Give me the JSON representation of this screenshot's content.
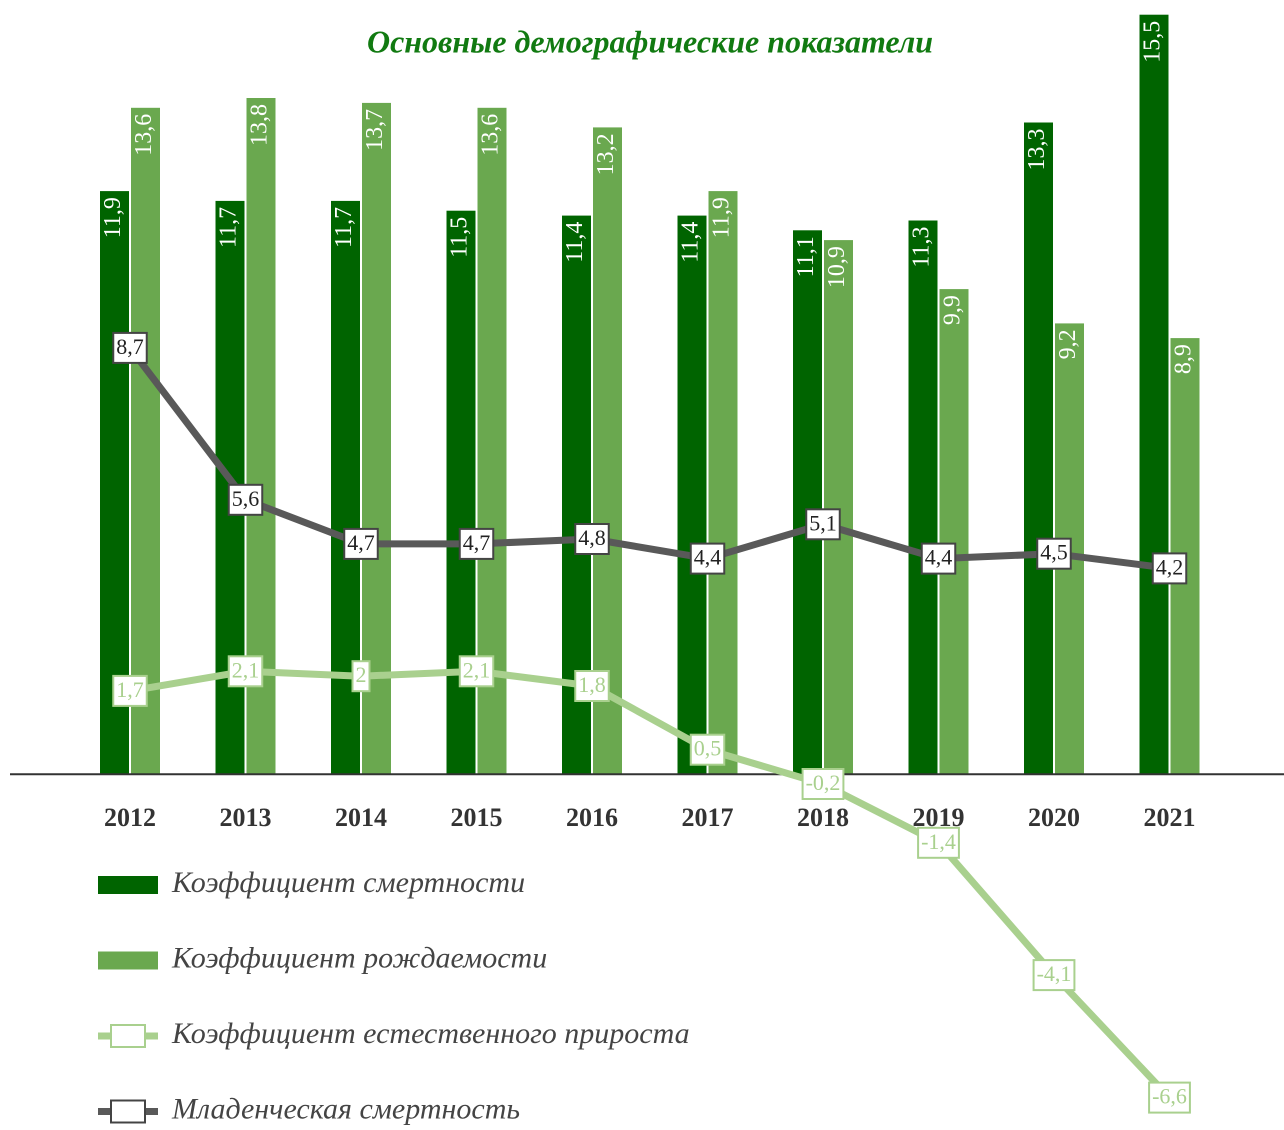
{
  "chart_data": {
    "type": "bar",
    "title": "Основные демографические показатели",
    "categories": [
      "2012",
      "2013",
      "2014",
      "2015",
      "2016",
      "2017",
      "2018",
      "2019",
      "2020",
      "2021"
    ],
    "ylim": [
      -7.2,
      15.8
    ],
    "series": [
      {
        "name": "Коэффициент смертности",
        "type": "bar",
        "color": "#006400",
        "values": [
          11.9,
          11.7,
          11.7,
          11.5,
          11.4,
          11.4,
          11.1,
          11.3,
          13.3,
          15.5
        ],
        "value_labels": [
          "11,9",
          "11,7",
          "11,7",
          "11,5",
          "11,4",
          "11,4",
          "11,1",
          "11,3",
          "13,3",
          "15,5"
        ]
      },
      {
        "name": "Коэффициент рождаемости",
        "type": "bar",
        "color": "#6aa84f",
        "values": [
          13.6,
          13.8,
          13.7,
          13.6,
          13.2,
          11.9,
          10.9,
          9.9,
          9.2,
          8.9
        ],
        "value_labels": [
          "13,6",
          "13,8",
          "13,7",
          "13,6",
          "13,2",
          "11,9",
          "10,9",
          "9,9",
          "9,2",
          "8,9"
        ]
      },
      {
        "name": "Коэффициент естественного прироста",
        "type": "line",
        "color": "#a9d08e",
        "values": [
          1.7,
          2.1,
          2,
          2.1,
          1.8,
          0.5,
          -0.2,
          -1.4,
          -4.1,
          -6.6
        ],
        "value_labels": [
          "1,7",
          "2,1",
          "2",
          "2,1",
          "1,8",
          "0,5",
          "-0,2",
          "-1,4",
          "-4,1",
          "-6,6"
        ]
      },
      {
        "name": "Младенческая смертность",
        "type": "line",
        "color": "#595959",
        "values": [
          8.7,
          5.6,
          4.7,
          4.7,
          4.8,
          4.4,
          5.1,
          4.4,
          4.5,
          4.2
        ],
        "value_labels": [
          "8,7",
          "5,6",
          "4,7",
          "4,7",
          "4,8",
          "4,4",
          "5,1",
          "4,4",
          "4,5",
          "4,2"
        ]
      }
    ]
  }
}
